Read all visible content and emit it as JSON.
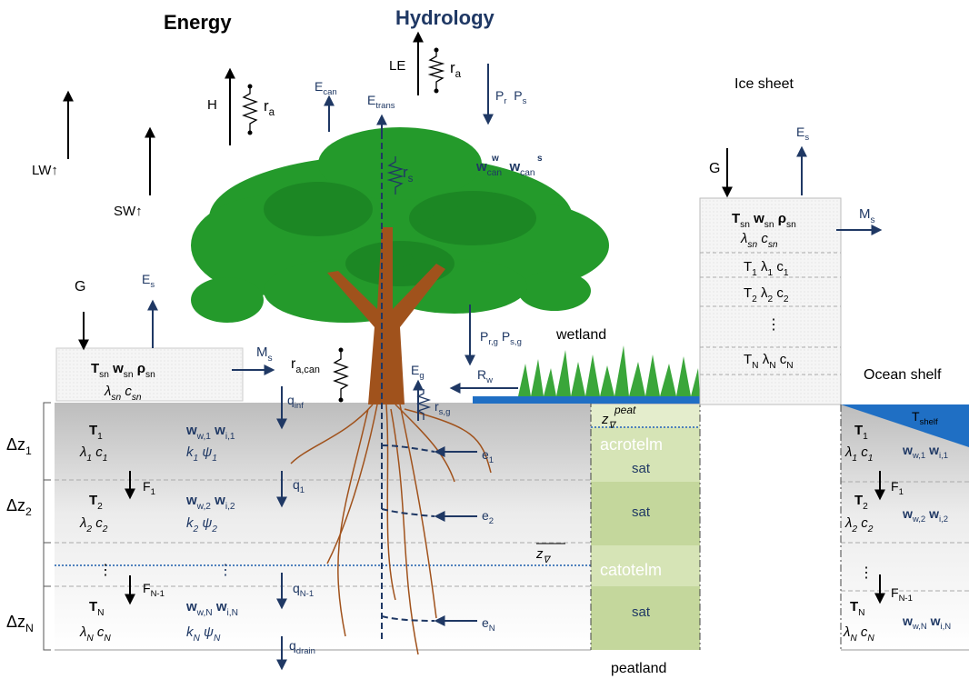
{
  "labels": {
    "energy": [
      "Energy"
    ],
    "hydrology": [
      "Hydrology"
    ],
    "lw": [
      "LW↑"
    ],
    "sw": [
      "SW↑"
    ],
    "h": [
      "H"
    ],
    "ra1": [
      "r",
      "a"
    ],
    "ecan": [
      "E",
      "can"
    ],
    "etrans": [
      "E",
      "trans"
    ],
    "le": [
      "LE"
    ],
    "ra2": [
      "r",
      "a"
    ],
    "prps": [
      "P",
      "r",
      "  P",
      "s"
    ],
    "rs": [
      "r",
      "s"
    ],
    "wcan": [
      "w",
      "can",
      "  w",
      "can"
    ],
    "wcan_sup1": [
      "w"
    ],
    "wcan_sup2": [
      "s"
    ],
    "ice": [
      "Ice sheet"
    ],
    "ice_g": [
      "G"
    ],
    "ice_es": [
      "E",
      "s"
    ],
    "ice_tsn": [
      "T",
      "sn",
      " w",
      "sn",
      " ρ",
      "sn"
    ],
    "ice_lsn": [
      "λ",
      "sn",
      " c",
      "sn"
    ],
    "ice_ms": [
      "M",
      "s"
    ],
    "ice_t1": [
      "T",
      "1",
      " λ",
      "1",
      " c",
      "1"
    ],
    "ice_t2": [
      "T",
      "2",
      " λ",
      "2",
      " c",
      "2"
    ],
    "ice_dots": [
      "⋮"
    ],
    "ice_tn": [
      "T",
      "N",
      " λ",
      "N",
      " c",
      "N"
    ],
    "ocean": [
      "Ocean shelf"
    ],
    "tshelf": [
      "T",
      "shelf"
    ],
    "l_g": [
      "G"
    ],
    "l_es": [
      "E",
      "s"
    ],
    "l_tsn": [
      "T",
      "sn",
      " w",
      "sn",
      " ρ",
      "sn"
    ],
    "l_lsn": [
      "λ",
      "sn",
      " c",
      "sn"
    ],
    "l_ms": [
      "M",
      "s"
    ],
    "racan": [
      "r",
      "a,can"
    ],
    "qinf": [
      "q",
      "inf"
    ],
    "eg": [
      "E",
      "g"
    ],
    "rsg": [
      "r",
      "s,g"
    ],
    "rw": [
      "R",
      "w"
    ],
    "prg": [
      "P",
      "r,g",
      " P",
      "s,g"
    ],
    "wetland": [
      "wetland"
    ],
    "dz1": [
      "Δz",
      "1"
    ],
    "dz2": [
      "Δz",
      "2"
    ],
    "dzn": [
      "Δz",
      "N"
    ],
    "s_t1": [
      "T",
      "1"
    ],
    "s_lc1": [
      "λ",
      "1",
      " c",
      "1"
    ],
    "s_w1": [
      "w",
      "w,1",
      " w",
      "i,1"
    ],
    "s_k1": [
      "k",
      "1",
      " ψ",
      "1"
    ],
    "f1": [
      "F",
      "1"
    ],
    "q1": [
      "q",
      "1"
    ],
    "s_t2": [
      "T",
      "2"
    ],
    "s_lc2": [
      "λ",
      "2",
      " c",
      "2"
    ],
    "s_w2": [
      "w",
      "w,2",
      " w",
      "i,2"
    ],
    "s_k2": [
      "k",
      "2",
      " ψ",
      "2"
    ],
    "dots1": [
      "⋮"
    ],
    "dots2": [
      "⋮"
    ],
    "fn1": [
      "F",
      "N-1"
    ],
    "qn1": [
      "q",
      "N-1"
    ],
    "s_tn": [
      "T",
      "N"
    ],
    "s_lcn": [
      "λ",
      "N",
      " c",
      "N"
    ],
    "s_wn": [
      "w",
      "w,N",
      " w",
      "i,N"
    ],
    "s_kn": [
      "k",
      "N",
      " ψ",
      "N"
    ],
    "qdrain": [
      "q",
      "drain"
    ],
    "e1": [
      "e",
      "1"
    ],
    "e2": [
      "e",
      "2"
    ],
    "en": [
      "e",
      "N"
    ],
    "zpeat": [
      "z",
      "∇"
    ],
    "zpeat_sup": [
      "peat"
    ],
    "acrotelm": [
      "acrotelm"
    ],
    "sat1": [
      "sat"
    ],
    "sat2": [
      "sat"
    ],
    "zbar": [
      "z",
      "∇"
    ],
    "catotelm": [
      "catotelm"
    ],
    "sat3": [
      "sat"
    ],
    "peatland": [
      "peatland"
    ],
    "r_t1": [
      "T",
      "1"
    ],
    "r_lc1": [
      "λ",
      "1",
      " c",
      "1"
    ],
    "r_w1": [
      "w",
      "w,1",
      " w",
      "i,1"
    ],
    "r_f1": [
      "F",
      "1"
    ],
    "r_t2": [
      "T",
      "2"
    ],
    "r_lc2": [
      "λ",
      "2",
      " c",
      "2"
    ],
    "r_w2": [
      "w",
      "w,2",
      " w",
      "i,2"
    ],
    "r_dots": [
      "⋮"
    ],
    "r_fn1": [
      "F",
      "N-1"
    ],
    "r_tn": [
      "T",
      "N"
    ],
    "r_lcn": [
      "λ",
      "N",
      " c",
      "N"
    ],
    "r_wn": [
      "w",
      "w,N",
      " w",
      "i,N"
    ]
  }
}
